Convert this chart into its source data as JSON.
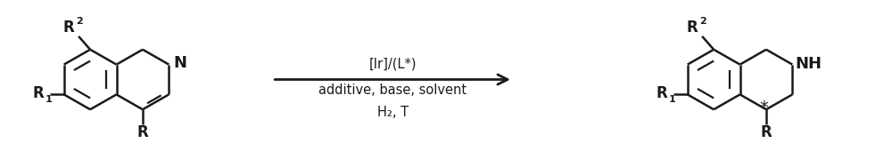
{
  "bg_color": "#ffffff",
  "line_color": "#1a1a1a",
  "line_width": 1.8,
  "font_size_label": 12,
  "font_size_sub": 8,
  "font_size_condition": 10.5,
  "font_size_NH": 13,
  "arrow_above": "[Ir]/(L*)",
  "arrow_below1": "additive, base, solvent",
  "arrow_below2": "H₂, T",
  "figsize": [
    10.0,
    1.79
  ],
  "dpi": 100
}
